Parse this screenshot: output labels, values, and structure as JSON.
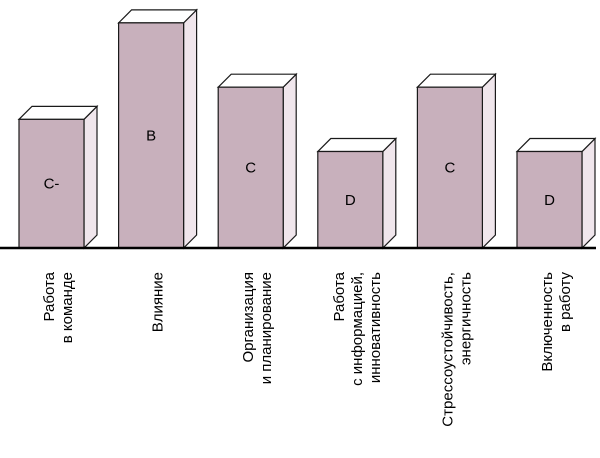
{
  "chart_data": {
    "type": "bar",
    "categories": [
      [
        "Работа",
        "в команде"
      ],
      [
        "Влияние"
      ],
      [
        "Организация",
        "и планирование"
      ],
      [
        "Работа",
        "с информацией,",
        "инновативность"
      ],
      [
        "Стрессоустойчивость,",
        "энергичность"
      ],
      [
        "Включенность",
        "в работу"
      ]
    ],
    "values": [
      4,
      7,
      5,
      3,
      5,
      3
    ],
    "data_labels": [
      "C-",
      "B",
      "C",
      "D",
      "C",
      "D"
    ],
    "ylim": [
      0,
      7.4
    ],
    "title": "",
    "xlabel": "",
    "ylabel": "",
    "grid": false,
    "bar_style": "3d",
    "colors": {
      "front": "#c8b0bc",
      "side": "#f0e6ec",
      "top": "#ffffff",
      "edge": "#1a1a1a"
    }
  }
}
